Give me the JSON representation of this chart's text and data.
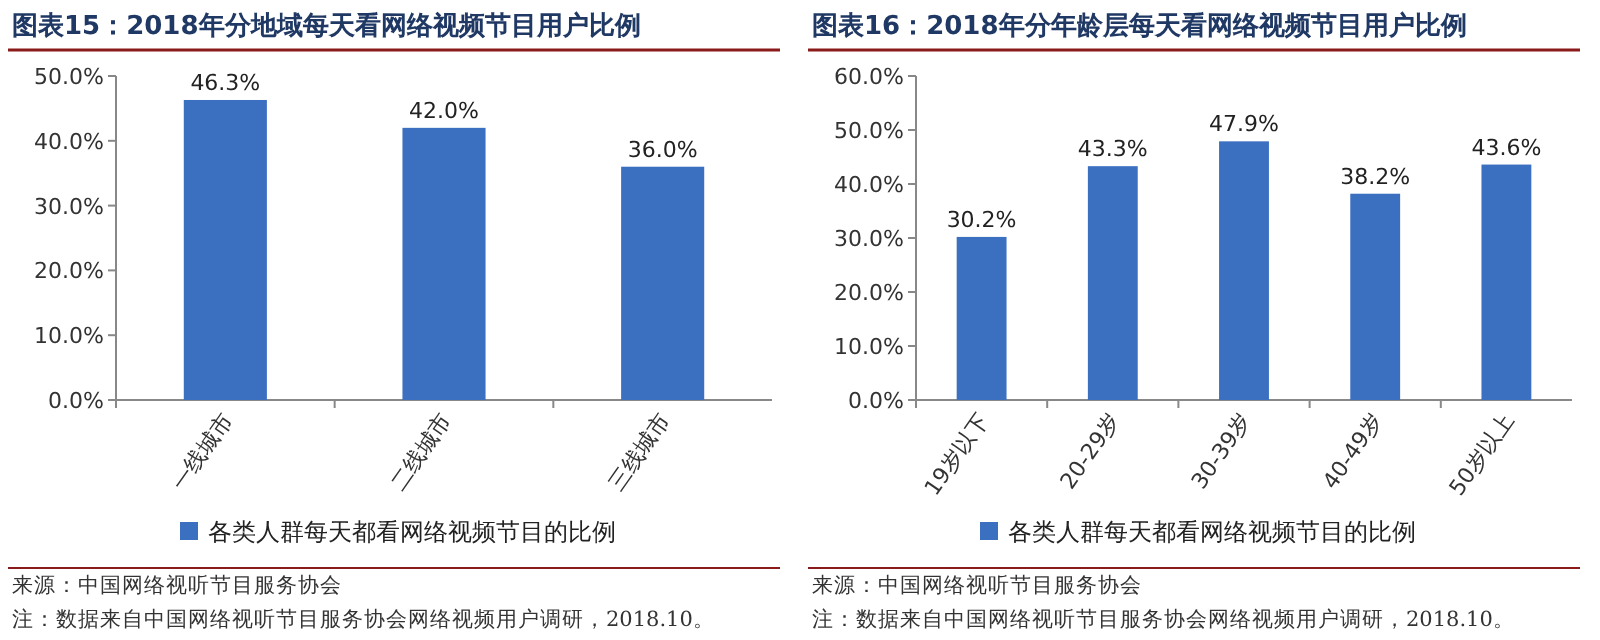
{
  "chart_data": [
    {
      "type": "bar",
      "title": "图表15：2018年分地域每天看网络视频节目用户比例",
      "categories": [
        "一线城市",
        "二线城市",
        "三线城市"
      ],
      "series": [
        {
          "name": "各类人群每天都看网络视频节目的比例",
          "color": "#3b6fc0",
          "values": [
            46.3,
            42.0,
            36.0
          ],
          "value_labels": [
            "46.3%",
            "42.0%",
            "36.0%"
          ]
        }
      ],
      "ylim": [
        0,
        50
      ],
      "yticks": [
        {
          "value": 0,
          "label": "0.0%"
        },
        {
          "value": 10,
          "label": "10.0%"
        },
        {
          "value": 20,
          "label": "20.0%"
        },
        {
          "value": 30,
          "label": "30.0%"
        },
        {
          "value": 40,
          "label": "40.0%"
        },
        {
          "value": 50,
          "label": "50.0%"
        }
      ],
      "legend": "bottom",
      "grid": false,
      "annotations": [
        "来源：中国网络视听节目服务协会",
        "注：数据来自中国网络视听节目服务协会网络视频用户调研，2018.10。"
      ]
    },
    {
      "type": "bar",
      "title": "图表16：2018年分年龄层每天看网络视频节目用户比例",
      "categories": [
        "19岁以下",
        "20-29岁",
        "30-39岁",
        "40-49岁",
        "50岁以上"
      ],
      "series": [
        {
          "name": "各类人群每天都看网络视频节目的比例",
          "color": "#3b6fc0",
          "values": [
            30.2,
            43.3,
            47.9,
            38.2,
            43.6
          ],
          "value_labels": [
            "30.2%",
            "43.3%",
            "47.9%",
            "38.2%",
            "43.6%"
          ]
        }
      ],
      "ylim": [
        0,
        60
      ],
      "yticks": [
        {
          "value": 0,
          "label": "0.0%"
        },
        {
          "value": 10,
          "label": "10.0%"
        },
        {
          "value": 20,
          "label": "20.0%"
        },
        {
          "value": 30,
          "label": "30.0%"
        },
        {
          "value": 40,
          "label": "40.0%"
        },
        {
          "value": 50,
          "label": "50.0%"
        },
        {
          "value": 60,
          "label": "60.0%"
        }
      ],
      "legend": "bottom",
      "grid": false,
      "annotations": [
        "来源：中国网络视听节目服务协会",
        "注：数据来自中国网络视听节目服务协会网络视频用户调研，2018.10。"
      ]
    }
  ]
}
